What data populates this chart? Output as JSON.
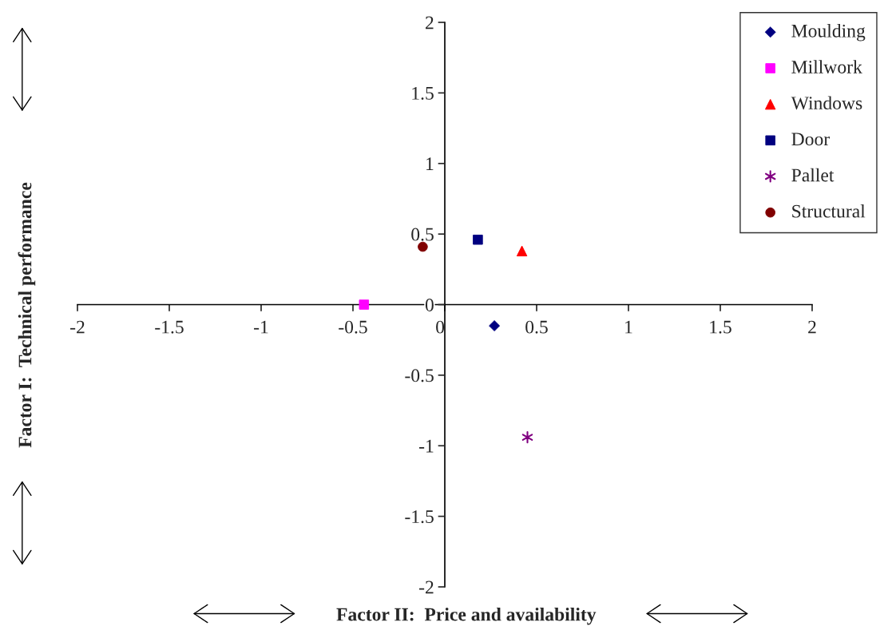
{
  "chart_data": {
    "type": "scatter",
    "xlabel": "Factor II:  Price and availability",
    "ylabel": "Factor I:  Technical performance",
    "series": [
      {
        "name": "Moulding",
        "color": "#000080",
        "marker": "diamond",
        "x": [
          0.27
        ],
        "values": [
          -0.15
        ]
      },
      {
        "name": "Millwork",
        "color": "#ff00ff",
        "marker": "square",
        "x": [
          -0.44
        ],
        "values": [
          0
        ]
      },
      {
        "name": "Windows",
        "color": "#ff0000",
        "marker": "triangle",
        "x": [
          0.42
        ],
        "values": [
          0.38
        ]
      },
      {
        "name": "Door",
        "color": "#000080",
        "marker": "square",
        "x": [
          0.18
        ],
        "values": [
          0.46
        ]
      },
      {
        "name": "Pallet",
        "color": "#800080",
        "marker": "cross",
        "x": [
          0.45
        ],
        "values": [
          -0.94
        ]
      },
      {
        "name": "Structural",
        "color": "#800000",
        "marker": "circle",
        "x": [
          -0.12
        ],
        "values": [
          0.41
        ]
      }
    ],
    "xlim": [
      -2,
      2
    ],
    "ylim": [
      -2,
      2
    ],
    "xticks": [
      -2,
      -1.5,
      -1,
      -0.5,
      0,
      0.5,
      1,
      1.5,
      2
    ],
    "yticks": [
      -2,
      -1.5,
      -1,
      -0.5,
      0,
      0.5,
      1,
      1.5,
      2
    ],
    "grid": false,
    "legend": "top right"
  }
}
